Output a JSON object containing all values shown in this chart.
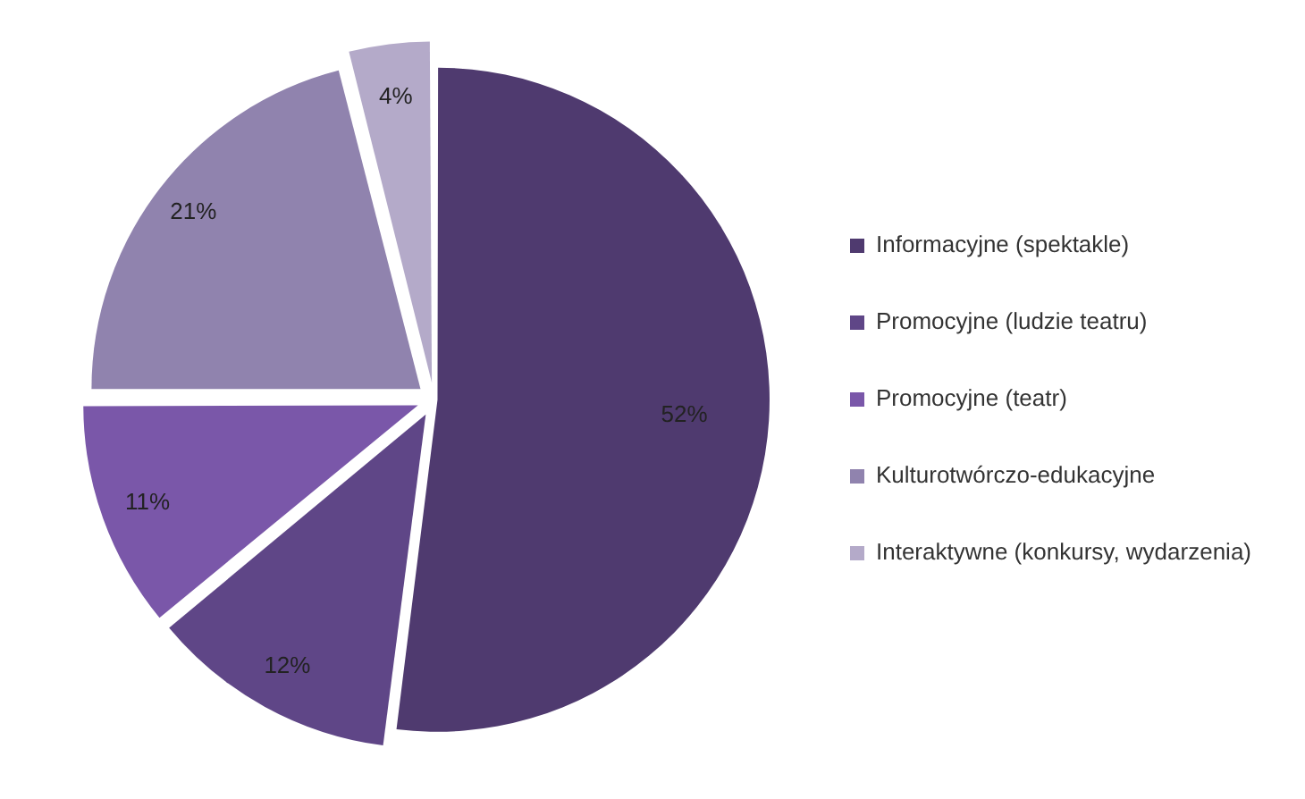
{
  "chart_data": {
    "type": "pie",
    "categories": [
      "Informacyjne (spektakle)",
      "Promocyjne (ludzie teatru)",
      "Promocyjne (teatr)",
      "Kulturotwórczo-edukacyjne",
      "Interaktywne (konkursy, wydarzenia)"
    ],
    "values": [
      52,
      12,
      11,
      21,
      4
    ],
    "value_labels": [
      "52%",
      "12%",
      "11%",
      "21%",
      "4%"
    ],
    "colors": [
      "#4f3a6f",
      "#5f4687",
      "#7a57a9",
      "#9083ae",
      "#b4aac9"
    ],
    "legend": "right"
  }
}
